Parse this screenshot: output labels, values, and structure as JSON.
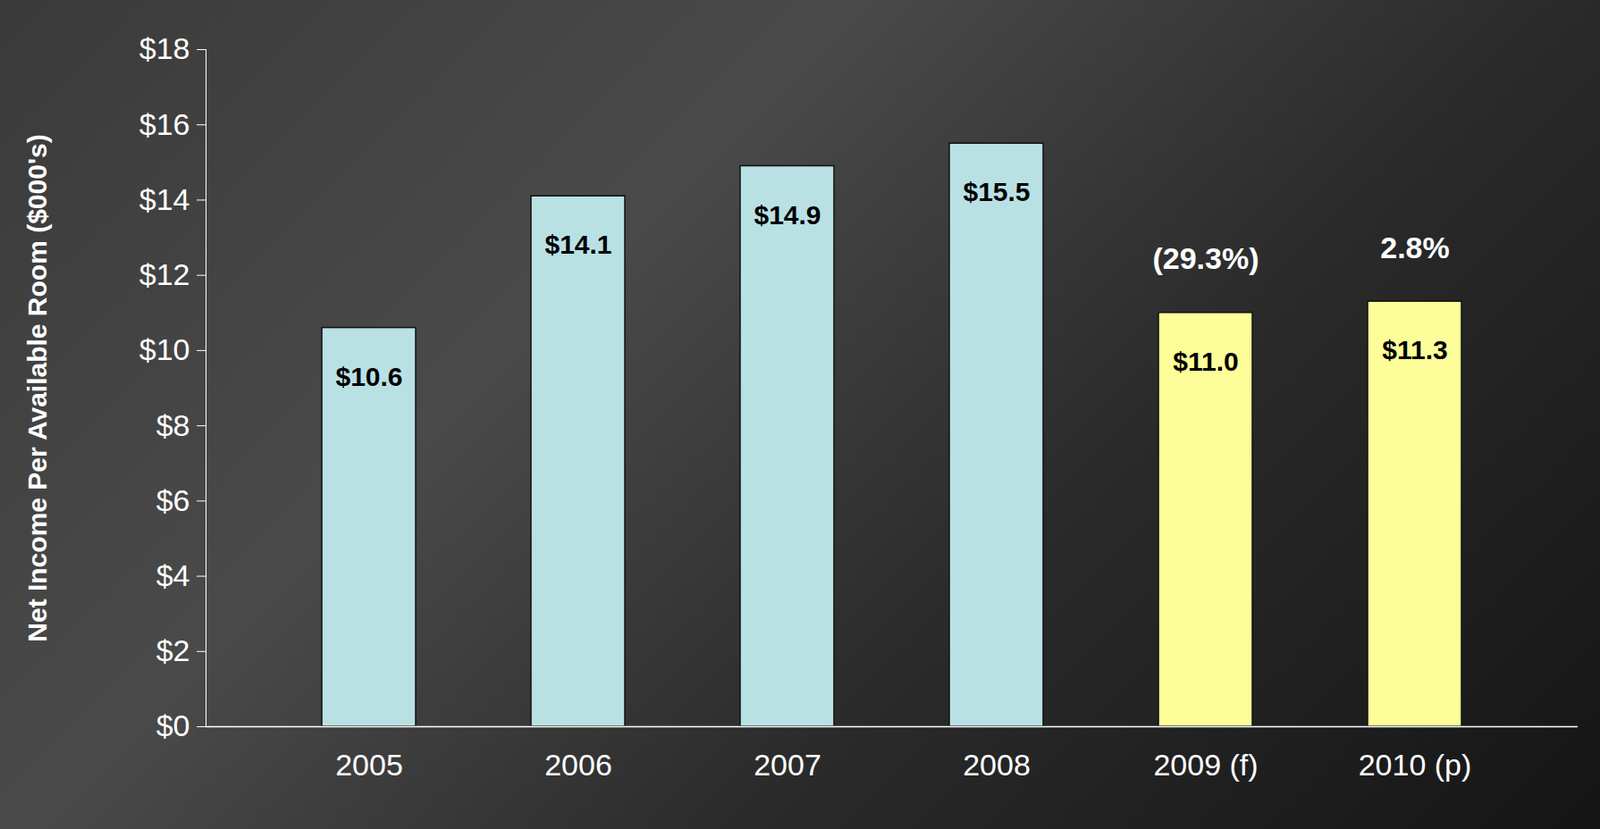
{
  "chart_data": {
    "type": "bar",
    "categories": [
      "2005",
      "2006",
      "2007",
      "2008",
      "2009 (f)",
      "2010 (p)"
    ],
    "values": [
      10.6,
      14.1,
      14.9,
      15.5,
      11.0,
      11.3
    ],
    "value_labels": [
      "$10.6",
      "$14.1",
      "$14.9",
      "$15.5",
      "$11.0",
      "$11.3"
    ],
    "colors": [
      "#b9e1e4",
      "#b9e1e4",
      "#b9e1e4",
      "#b9e1e4",
      "#fdfd99",
      "#fdfd99"
    ],
    "data_labels": true,
    "ylabel": "Net Income Per Available Room ($000's)",
    "ylim": [
      0,
      18
    ],
    "yticks": [
      {
        "value": 0,
        "label": "$0"
      },
      {
        "value": 2,
        "label": "$2"
      },
      {
        "value": 4,
        "label": "$4"
      },
      {
        "value": 6,
        "label": "$6"
      },
      {
        "value": 8,
        "label": "$8"
      },
      {
        "value": 10,
        "label": "$10"
      },
      {
        "value": 12,
        "label": "$12"
      },
      {
        "value": 14,
        "label": "$14"
      },
      {
        "value": 16,
        "label": "$16"
      },
      {
        "value": 18,
        "label": "$18"
      }
    ],
    "annotations": [
      {
        "category": "2009 (f)",
        "text": "(29.3%)"
      },
      {
        "category": "2010 (p)",
        "text": "2.8%"
      }
    ],
    "grid": false
  }
}
